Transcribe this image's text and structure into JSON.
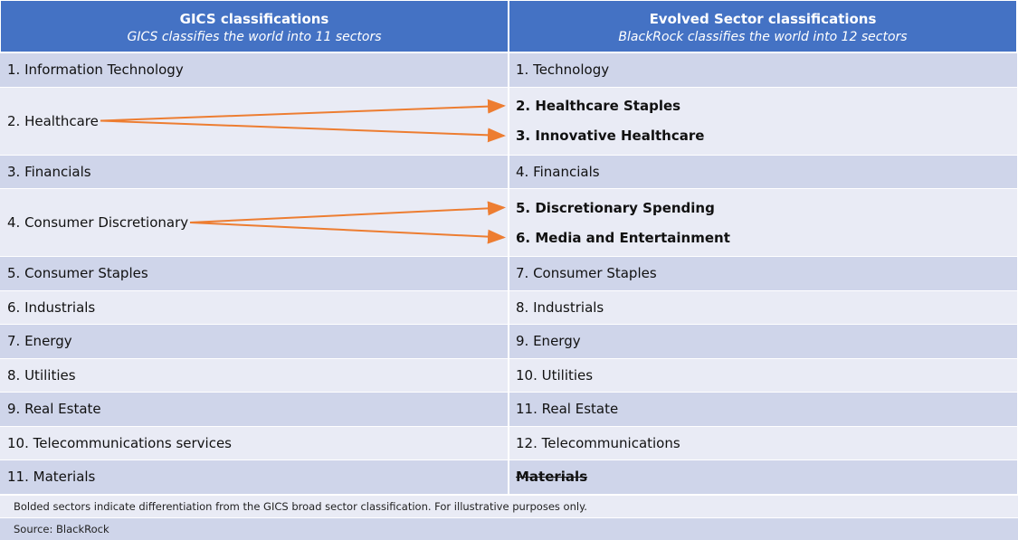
{
  "header": {
    "left_title": "GICS classifications",
    "left_subtitle": "GICS classifies the world into 11 sectors",
    "right_title": "Evolved Sector classifications",
    "right_subtitle": "BlackRock classifies the world into 12 sectors"
  },
  "rows": [
    {
      "left": "1. Information Technology",
      "right": [
        {
          "label": "1. Technology"
        }
      ]
    },
    {
      "left": "2. Healthcare",
      "right": [
        {
          "label": "2. Healthcare Staples",
          "bold": true
        },
        {
          "label": "3. Innovative Healthcare",
          "bold": true
        }
      ]
    },
    {
      "left": "3. Financials",
      "right": [
        {
          "label": "4. Financials"
        }
      ]
    },
    {
      "left": "4. Consumer Discretionary",
      "right": [
        {
          "label": "5. Discretionary Spending",
          "bold": true
        },
        {
          "label": "6. Media and Entertainment",
          "bold": true
        }
      ]
    },
    {
      "left": "5. Consumer Staples",
      "right": [
        {
          "label": "7. Consumer Staples"
        }
      ]
    },
    {
      "left": "6. Industrials",
      "right": [
        {
          "label": "8. Industrials"
        }
      ]
    },
    {
      "left": "7. Energy",
      "right": [
        {
          "label": "9. Energy"
        }
      ]
    },
    {
      "left": "8. Utilities",
      "right": [
        {
          "label": "10. Utilities"
        }
      ]
    },
    {
      "left": "9. Real Estate",
      "right": [
        {
          "label": "11. Real Estate"
        }
      ]
    },
    {
      "left": "10. Telecommunications services",
      "right": [
        {
          "label": "12. Telecommunications"
        }
      ]
    },
    {
      "left": "11. Materials",
      "right": [
        {
          "label": "Materials",
          "bold": true,
          "strikethrough": true
        }
      ]
    }
  ],
  "footnote": "Bolded sectors indicate differentiation from the GICS broad sector classification. For illustrative purposes only.",
  "source": "Source: BlackRock"
}
